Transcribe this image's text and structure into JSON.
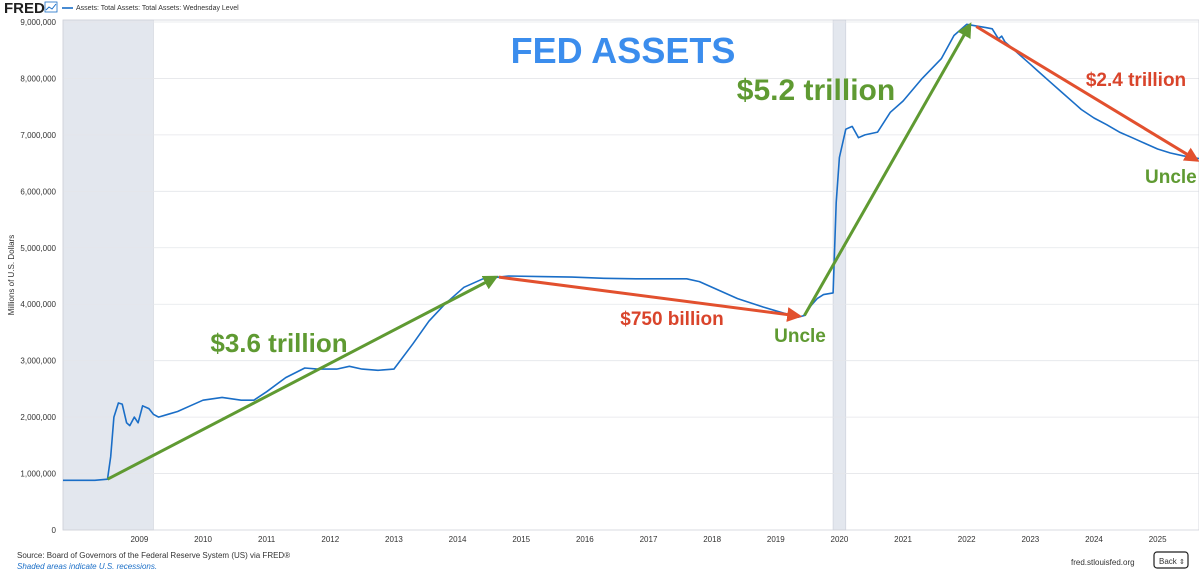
{
  "header": {
    "logo_text": "FRED",
    "legend_label": "Assets: Total Assets: Total Assets: Wednesday Level"
  },
  "footer": {
    "source": "Source: Board of Governors of the Federal Reserve System (US) via FRED®",
    "recession_note": "Shaded areas indicate U.S. recessions.",
    "site": "fred.stlouisfed.org",
    "back_label": "Back"
  },
  "colors": {
    "series": "#1a6ec7",
    "up_arrow": "#5f9a32",
    "down_arrow": "#e2502e",
    "title": "#3b8ded",
    "recession": "#e3e7ee"
  },
  "chart_data": {
    "type": "line",
    "title": "FED ASSETS",
    "ylabel": "Millions of U.S. Dollars",
    "xlabel": "",
    "xlim": [
      2008.0,
      2025.85
    ],
    "ylim": [
      0,
      9000000
    ],
    "x_ticks": [
      2009,
      2010,
      2011,
      2012,
      2013,
      2014,
      2015,
      2016,
      2017,
      2018,
      2019,
      2020,
      2021,
      2022,
      2023,
      2024,
      2025
    ],
    "y_ticks": [
      "0",
      "1,000,000",
      "2,000,000",
      "3,000,000",
      "4,000,000",
      "5,000,000",
      "6,000,000",
      "7,000,000",
      "8,000,000",
      "9,000,000"
    ],
    "recessions": [
      [
        2008.0,
        2009.42
      ],
      [
        2020.1,
        2020.3
      ]
    ],
    "series": [
      {
        "name": "Assets: Total Assets: Total Assets: Wednesday Level",
        "x": [
          2008.0,
          2008.5,
          2008.7,
          2008.75,
          2008.8,
          2008.87,
          2008.93,
          2009.0,
          2009.05,
          2009.12,
          2009.18,
          2009.25,
          2009.35,
          2009.42,
          2009.5,
          2009.65,
          2009.8,
          2010.0,
          2010.2,
          2010.5,
          2010.8,
          2011.0,
          2011.2,
          2011.5,
          2011.8,
          2012.0,
          2012.3,
          2012.5,
          2012.7,
          2012.95,
          2013.2,
          2013.5,
          2013.75,
          2014.0,
          2014.3,
          2014.6,
          2014.85,
          2015.0,
          2015.5,
          2016.0,
          2016.5,
          2017.0,
          2017.5,
          2017.8,
          2018.0,
          2018.3,
          2018.6,
          2019.0,
          2019.3,
          2019.55,
          2019.65,
          2019.75,
          2019.85,
          2019.95,
          2020.1,
          2020.15,
          2020.2,
          2020.3,
          2020.4,
          2020.5,
          2020.6,
          2020.8,
          2021.0,
          2021.2,
          2021.5,
          2021.8,
          2022.0,
          2022.2,
          2022.3,
          2022.5,
          2022.6,
          2022.7,
          2022.75,
          2022.8,
          2022.9,
          2023.0,
          2023.1,
          2023.2,
          2023.3,
          2023.5,
          2023.7,
          2023.9,
          2024.0,
          2024.2,
          2024.4,
          2024.6,
          2024.8,
          2025.0,
          2025.2,
          2025.4,
          2025.6,
          2025.85
        ],
        "values": [
          880000,
          880000,
          900000,
          1300000,
          2000000,
          2250000,
          2230000,
          1900000,
          1850000,
          2000000,
          1900000,
          2200000,
          2150000,
          2050000,
          2000000,
          2050000,
          2100000,
          2200000,
          2300000,
          2350000,
          2300000,
          2300000,
          2450000,
          2700000,
          2870000,
          2850000,
          2850000,
          2900000,
          2850000,
          2830000,
          2850000,
          3300000,
          3700000,
          4000000,
          4300000,
          4450000,
          4480000,
          4500000,
          4490000,
          4480000,
          4460000,
          4450000,
          4450000,
          4450000,
          4400000,
          4250000,
          4100000,
          3950000,
          3850000,
          3770000,
          3800000,
          3970000,
          4100000,
          4170000,
          4200000,
          5800000,
          6600000,
          7100000,
          7150000,
          6950000,
          7000000,
          7050000,
          7400000,
          7600000,
          8000000,
          8350000,
          8760000,
          8960000,
          8940000,
          8900000,
          8880000,
          8700000,
          8750000,
          8650000,
          8550000,
          8450000,
          8350000,
          8250000,
          8150000,
          7950000,
          7750000,
          7550000,
          7450000,
          7300000,
          7180000,
          7050000,
          6950000,
          6850000,
          6750000,
          6680000,
          6630000,
          6580000
        ]
      }
    ],
    "annotations": {
      "up_arrows": [
        {
          "from": [
            2008.7,
            900000
          ],
          "to": [
            2014.8,
            4480000
          ]
        },
        {
          "from": [
            2019.65,
            3800000
          ],
          "to": [
            2022.25,
            8950000
          ]
        }
      ],
      "down_arrows": [
        {
          "from": [
            2014.85,
            4480000
          ],
          "to": [
            2019.6,
            3790000
          ]
        },
        {
          "from": [
            2022.35,
            8920000
          ],
          "to": [
            2025.85,
            6550000
          ]
        }
      ],
      "labels": [
        {
          "text": "$3.6 trillion",
          "color": "up"
        },
        {
          "text": "$750 billion",
          "color": "down"
        },
        {
          "text": "Uncle",
          "color": "up"
        },
        {
          "text": "$5.2 trillion",
          "color": "up"
        },
        {
          "text": "$2.4 trillion",
          "color": "down"
        },
        {
          "text": "Uncle",
          "color": "up"
        }
      ]
    }
  }
}
